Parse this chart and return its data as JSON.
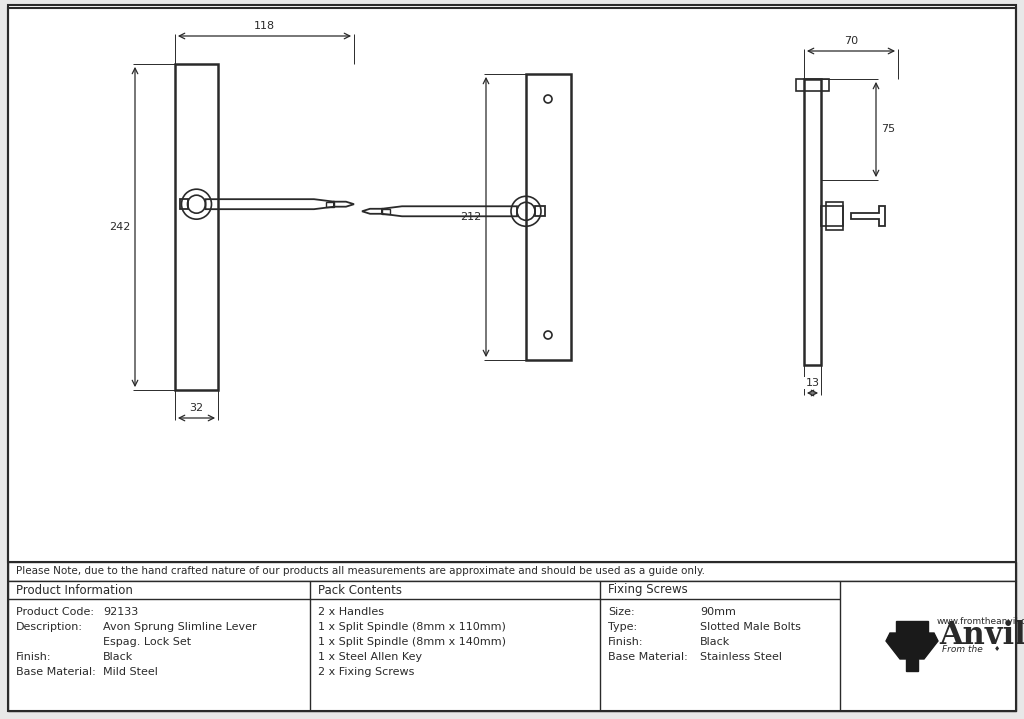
{
  "bg_color": "#e8e8e8",
  "drawing_bg": "#ffffff",
  "line_color": "#2a2a2a",
  "note_text": "Please Note, due to the hand crafted nature of our products all measurements are approximate and should be used as a guide only.",
  "pack_contents_items": [
    "2 x Handles",
    "1 x Split Spindle (8mm x 110mm)",
    "1 x Split Spindle (8mm x 140mm)",
    "1 x Steel Allen Key",
    "2 x Fixing Screws"
  ],
  "pi_labels": [
    "Product Code:",
    "Description:",
    "",
    "Finish:",
    "Base Material:"
  ],
  "pi_values": [
    "92133",
    "Avon Sprung Slimline Lever",
    "Espag. Lock Set",
    "Black",
    "Mild Steel"
  ],
  "fs_labels": [
    "Size:",
    "Type:",
    "Finish:",
    "Base Material:"
  ],
  "fs_values": [
    "90mm",
    "Slotted Male Bolts",
    "Black",
    "Stainless Steel"
  ],
  "dim_118": "118",
  "dim_242": "242",
  "dim_32": "32",
  "dim_212": "212",
  "dim_70": "70",
  "dim_75": "75",
  "dim_13": "13"
}
